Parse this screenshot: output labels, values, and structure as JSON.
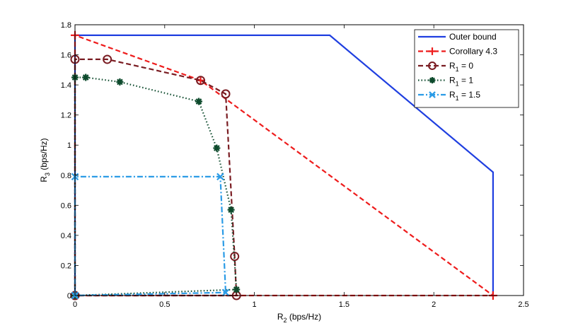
{
  "chart_data": {
    "type": "line",
    "title": "",
    "xlabel": {
      "main": "R",
      "sub": "2",
      "unit": " (bps/Hz)"
    },
    "ylabel": {
      "main": "R",
      "sub": "3",
      "unit": " (bps/Hz)"
    },
    "xlim": [
      0,
      2.5
    ],
    "ylim": [
      0,
      1.8
    ],
    "xticks": [
      0,
      0.5,
      1,
      1.5,
      2,
      2.5
    ],
    "xtick_labels": [
      "0",
      "0.5",
      "1",
      "1.5",
      "2",
      "2.5"
    ],
    "yticks": [
      0,
      0.2,
      0.4,
      0.6,
      0.8,
      1,
      1.2,
      1.4,
      1.6,
      1.8
    ],
    "ytick_labels": [
      "0",
      "0.2",
      "0.4",
      "0.6",
      "0.8",
      "1",
      "1.2",
      "1.4",
      "1.6",
      "1.8"
    ],
    "grid": false,
    "legend_position": "top-right",
    "series": [
      {
        "name": "Outer bound",
        "label_main": "Outer bound",
        "label_sub": "",
        "label_suffix": "",
        "color": "#1f3fe0",
        "dash": "",
        "marker": "none",
        "x": [
          0,
          0,
          1.42,
          2.33,
          2.33
        ],
        "y": [
          0,
          1.73,
          1.73,
          0.82,
          0
        ]
      },
      {
        "name": "Corollary 4.3",
        "label_main": "Corollary 4.3",
        "label_sub": "",
        "label_suffix": "",
        "color": "#ee1c1c",
        "dash": "7,4",
        "marker": "plus",
        "x": [
          0,
          0,
          0.7,
          2.33,
          0
        ],
        "y": [
          0,
          1.73,
          1.43,
          0,
          0
        ]
      },
      {
        "name": "R1 = 0",
        "label_main": "R",
        "label_sub": "1",
        "label_suffix": " = 0",
        "color": "#7a1c22",
        "dash": "7,4",
        "marker": "circle",
        "x": [
          0,
          0,
          0.18,
          0.7,
          0.84,
          0.89,
          0.9,
          0
        ],
        "y": [
          0,
          1.57,
          1.57,
          1.43,
          1.34,
          0.26,
          0,
          0
        ]
      },
      {
        "name": "R1 = 1",
        "label_main": "R",
        "label_sub": "1",
        "label_suffix": " = 1",
        "color": "#0d4a2c",
        "dash": "1.5,3",
        "marker": "asterisk",
        "x": [
          0,
          0,
          0.06,
          0.25,
          0.69,
          0.79,
          0.87,
          0.9,
          0
        ],
        "y": [
          0,
          1.45,
          1.45,
          1.42,
          1.29,
          0.98,
          0.57,
          0.04,
          0
        ]
      },
      {
        "name": "R1 = 1.5",
        "label_main": "R",
        "label_sub": "1",
        "label_suffix": " = 1.5",
        "color": "#2a9be6",
        "dash": "8,3,2,3",
        "marker": "x",
        "x": [
          0,
          0,
          0.81,
          0.84,
          0
        ],
        "y": [
          0,
          0.79,
          0.79,
          0.02,
          0
        ]
      }
    ]
  }
}
